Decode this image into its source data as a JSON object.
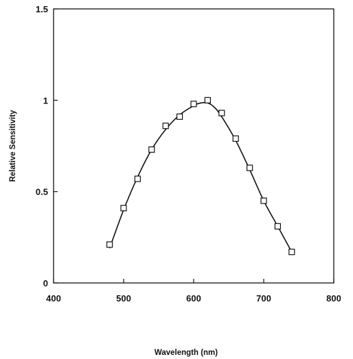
{
  "chart_data": {
    "type": "line",
    "title": "",
    "xlabel": "Wavelength (nm)",
    "ylabel": "Relative Sensitivity",
    "xlim": [
      400,
      800
    ],
    "ylim": [
      0,
      1.5
    ],
    "grid": false,
    "x_ticks": [
      400,
      500,
      600,
      700,
      800
    ],
    "x_tick_labels": [
      "400",
      "500",
      "600",
      "700",
      "800"
    ],
    "y_ticks": [
      0,
      0.5,
      1,
      1.5
    ],
    "y_tick_labels": [
      "0",
      "0.5",
      "1",
      "1.5"
    ],
    "series": [
      {
        "marker": "square",
        "x": [
          480,
          500,
          520,
          540,
          560,
          580,
          600,
          620,
          640,
          660,
          680,
          700,
          720,
          740
        ],
        "y": [
          0.21,
          0.41,
          0.57,
          0.73,
          0.86,
          0.91,
          0.98,
          1.0,
          0.93,
          0.79,
          0.63,
          0.45,
          0.31,
          0.17
        ]
      }
    ],
    "fit_curve": {
      "x": [
        480,
        500,
        520,
        540,
        560,
        580,
        600,
        610,
        620,
        630,
        640,
        660,
        680,
        700,
        720,
        740
      ],
      "y": [
        0.19,
        0.4,
        0.58,
        0.73,
        0.84,
        0.92,
        0.97,
        0.985,
        0.985,
        0.96,
        0.91,
        0.78,
        0.62,
        0.45,
        0.31,
        0.17
      ]
    },
    "colors": {
      "axis": "#111111",
      "line": "#111111",
      "marker_stroke": "#111111",
      "marker_fill": "#ffffff"
    }
  }
}
